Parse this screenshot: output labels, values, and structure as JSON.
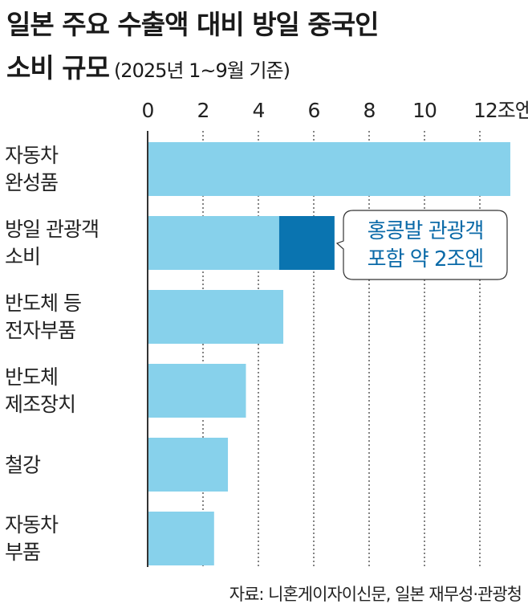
{
  "title_line1": "일본 주요 수출액 대비 방일 중국인",
  "title_line2": "소비 규모",
  "subtitle": "(2025년 1~9월 기준)",
  "source": "자료: 니혼게이자이신문, 일본 재무성·관광청",
  "chart_data": {
    "type": "bar",
    "orientation": "horizontal",
    "title": "일본 주요 수출액 대비 방일 중국인 소비 규모 (2025년 1~9월 기준)",
    "unit": "조엔",
    "xlim": [
      0,
      13
    ],
    "ticks": [
      0,
      2,
      4,
      6,
      8,
      10,
      12
    ],
    "tick_labels": [
      "0",
      "2",
      "4",
      "6",
      "8",
      "10",
      "12조엔"
    ],
    "categories": [
      [
        "자동차",
        "완성품"
      ],
      [
        "방일 관광객",
        "소비"
      ],
      [
        "반도체 등",
        "전자부품"
      ],
      [
        "반도체",
        "제조장치"
      ],
      [
        "철강"
      ],
      [
        "자동차",
        "부품"
      ]
    ],
    "series": [
      {
        "name": "주요 수출액 / 중국인 소비",
        "color": "#87d1eb",
        "values": [
          13.1,
          4.75,
          4.9,
          3.55,
          2.9,
          2.4
        ]
      },
      {
        "name": "홍콩발 관광객",
        "color": "#0a74b0",
        "values": [
          0,
          2.0,
          0,
          0,
          0,
          0
        ]
      }
    ],
    "annotation": {
      "lines": [
        "홍콩발 관광객",
        "포함 약 2조엔"
      ],
      "color": "#0a6aa8"
    }
  }
}
